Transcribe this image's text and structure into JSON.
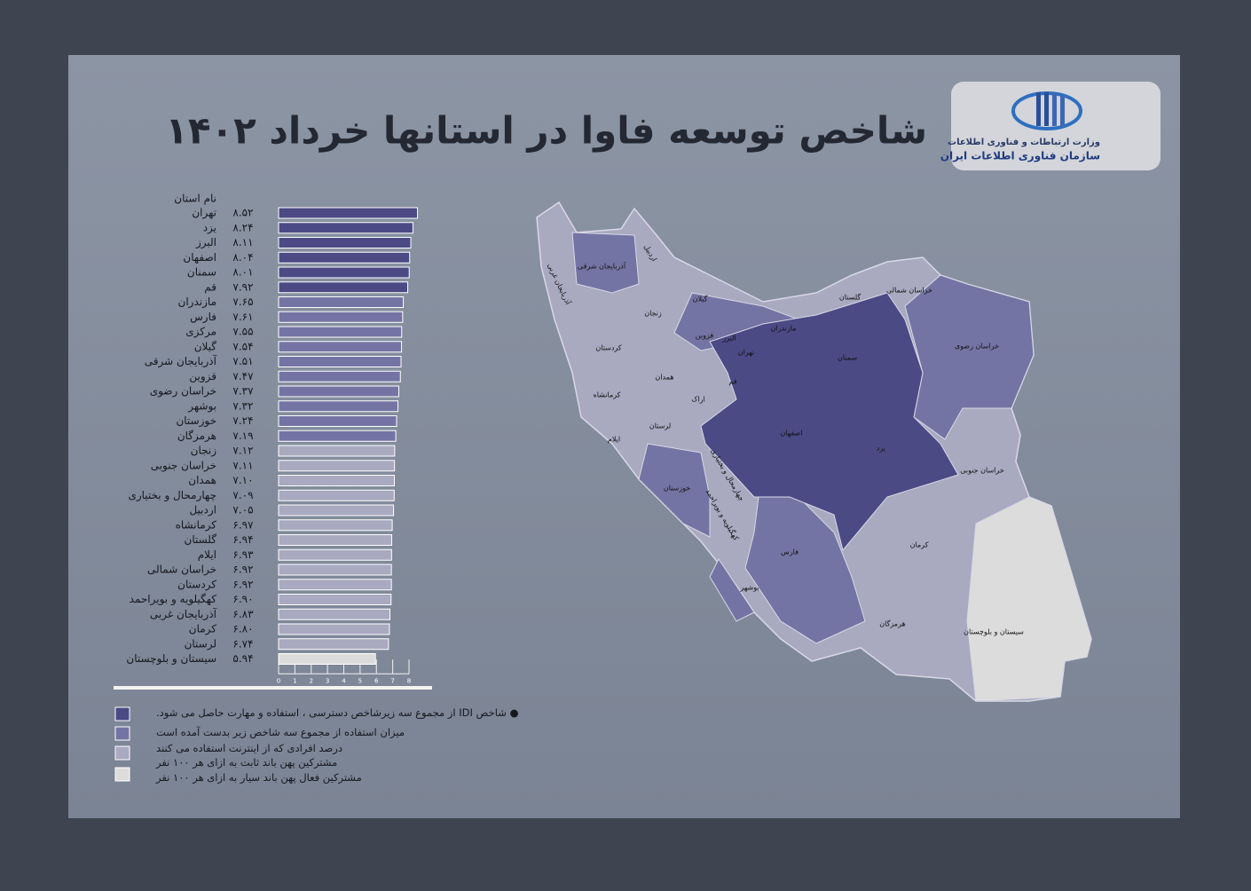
{
  "chart_data": {
    "type": "bar",
    "orientation": "horizontal",
    "title": "شاخص توسعه فاوا  در استانها خرداد ۱۴۰۲",
    "category_header": "نام استان",
    "categories": [
      "تهران",
      "یزد",
      "البرز",
      "اصفهان",
      "سمنان",
      "قم",
      "مازندران",
      "فارس",
      "مرکزی",
      "گیلان",
      "آذربایجان شرقی",
      "قزوین",
      "خراسان رضوی",
      "بوشهر",
      "خوزستان",
      "هرمزگان",
      "زنجان",
      "خراسان جنوبی",
      "همدان",
      "چهارمحال و بختیاری",
      "اردبیل",
      "کرمانشاه",
      "گلستان",
      "ایلام",
      "خراسان شمالی",
      "کردستان",
      "کهگیلویه و بویراحمد",
      "آذربایجان غربی",
      "کرمان",
      "لرستان",
      "سیستان و بلوچستان"
    ],
    "values": [
      8.52,
      8.24,
      8.11,
      8.04,
      8.01,
      7.92,
      7.65,
      7.61,
      7.55,
      7.54,
      7.51,
      7.47,
      7.37,
      7.32,
      7.24,
      7.19,
      7.12,
      7.11,
      7.1,
      7.09,
      7.05,
      6.97,
      6.94,
      6.93,
      6.92,
      6.92,
      6.9,
      6.83,
      6.8,
      6.74,
      5.94
    ],
    "value_labels": [
      "۸.۵۲",
      "۸.۲۴",
      "۸.۱۱",
      "۸.۰۴",
      "۸.۰۱",
      "۷.۹۲",
      "۷.۶۵",
      "۷.۶۱",
      "۷.۵۵",
      "۷.۵۴",
      "۷.۵۱",
      "۷.۴۷",
      "۷.۳۷",
      "۷.۳۲",
      "۷.۲۴",
      "۷.۱۹",
      "۷.۱۲",
      "۷.۱۱",
      "۷.۱۰",
      "۷.۰۹",
      "۷.۰۵",
      "۶.۹۷",
      "۶.۹۴",
      "۶.۹۳",
      "۶.۹۲",
      "۶.۹۲",
      "۶.۹۰",
      "۶.۸۳",
      "۶.۸۰",
      "۶.۷۴",
      "۵.۹۴"
    ],
    "colors": [
      "#4b4a85",
      "#4b4a85",
      "#4b4a85",
      "#4b4a85",
      "#4b4a85",
      "#4b4a85",
      "#7474a4",
      "#7474a4",
      "#7474a4",
      "#7474a4",
      "#7474a4",
      "#7474a4",
      "#7474a4",
      "#7474a4",
      "#7474a4",
      "#7474a4",
      "#a9a9c0",
      "#a9a9c0",
      "#a9a9c0",
      "#a9a9c0",
      "#a9a9c0",
      "#a9a9c0",
      "#a9a9c0",
      "#a9a9c0",
      "#a9a9c0",
      "#a9a9c0",
      "#a9a9c0",
      "#a9a9c0",
      "#a9a9c0",
      "#a9a9c0",
      "#dcdcdc"
    ],
    "xlim": [
      0,
      8
    ],
    "xticks": [
      0,
      1,
      2,
      3,
      4,
      5,
      6,
      7,
      8
    ],
    "legend_colors": [
      "#4b4a85",
      "#7474a4",
      "#a9a9c0",
      "#dcdcdc"
    ],
    "notes": [
      "● شاخص IDI از مجموع سه زیرشاخص دسترسی ، استفاده و مهارت حاصل می شود.",
      "میزان استفاده از مجموع سه شاخص زیر بدست آمده است",
      "درصد افرادی که از اینترنت استفاده می کنند",
      "مشترکین پهن باند ثابت به ازای هر ۱۰۰ نفر",
      "مشترکین فعال پهن باند سیار به ازای هر ۱۰۰ نفر"
    ]
  },
  "logo": {
    "line1": "وزارت ارتباطات و فناوری اطلاعات",
    "line2": "سازمان فناوری اطلاعات ایران"
  },
  "map": {
    "labels": [
      "آذربایجان شرقی",
      "اردبیل",
      "آذربایجان غربی",
      "گیلان",
      "زنجان",
      "قزوین",
      "البرز",
      "تهران",
      "مازندران",
      "گلستان",
      "خراسان شمالی",
      "خراسان رضوی",
      "سمنان",
      "کردستان",
      "همدان",
      "کرمانشاه",
      "اراک",
      "قم",
      "لرستان",
      "ایلام",
      "اصفهان",
      "یزد",
      "چهارمحال و بختیاری",
      "خوزستان",
      "کهگیلویه و بویراحمد",
      "خراسان جنوبی",
      "فارس",
      "کرمان",
      "بوشهر",
      "هرمزگان",
      "سیستان و بلوچستان"
    ]
  }
}
